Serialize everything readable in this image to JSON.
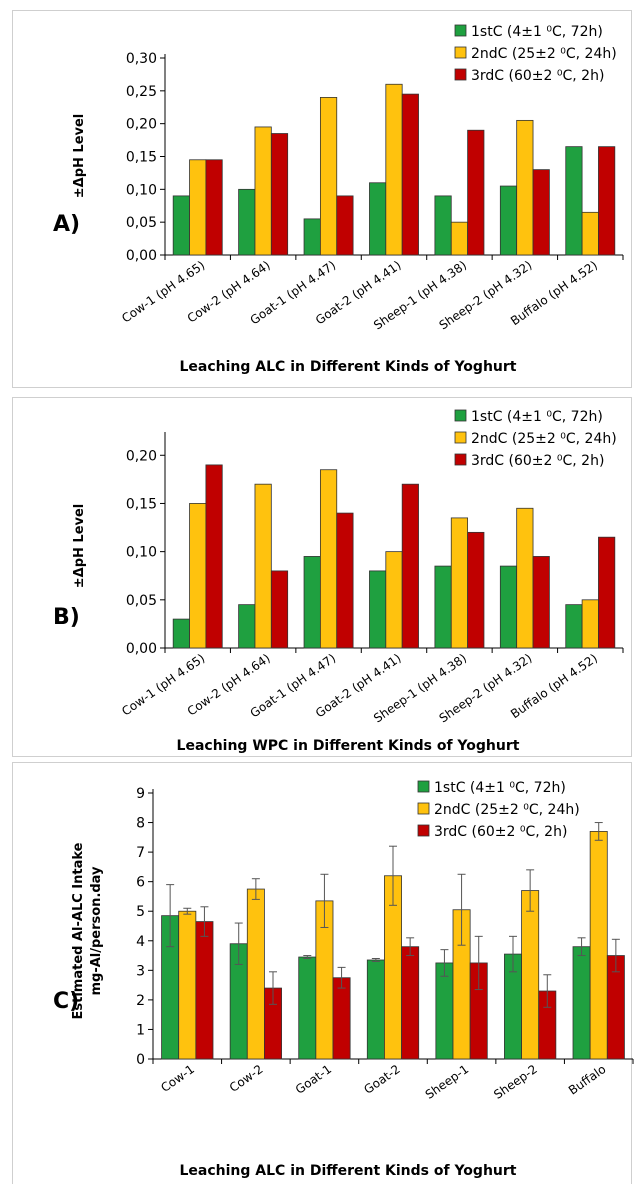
{
  "chart_data": [
    {
      "type": "bar",
      "panel_label": "A)",
      "ylabel": "±ΔpH Level",
      "xlabel": "Leaching ALC in Different Kinds of Yoghurt",
      "categories": [
        "Cow-1 (pH 4.65)",
        "Cow-2 (pH 4.64)",
        "Goat-1 (pH 4.47)",
        "Goat-2 (pH 4.41)",
        "Sheep-1 (pH 4.38)",
        "Sheep-2 (pH 4.32)",
        "Buffalo (pH 4.52)"
      ],
      "ylim": [
        0,
        0.3
      ],
      "yticks": [
        "0,00",
        "0,05",
        "0,10",
        "0,15",
        "0,20",
        "0,25",
        "0,30"
      ],
      "grid": false,
      "legend_position": "top-right",
      "series": [
        {
          "name": "1stC (4±1 ⁰C, 72h)",
          "color": "#1fa040",
          "values": [
            0.09,
            0.1,
            0.055,
            0.11,
            0.09,
            0.105,
            0.165
          ]
        },
        {
          "name": "2ndC (25±2 ⁰C, 24h)",
          "color": "#ffc20e",
          "values": [
            0.145,
            0.195,
            0.24,
            0.26,
            0.05,
            0.205,
            0.065
          ]
        },
        {
          "name": "3rdC (60±2 ⁰C, 2h)",
          "color": "#c00000",
          "values": [
            0.145,
            0.185,
            0.09,
            0.245,
            0.19,
            0.13,
            0.165
          ]
        }
      ]
    },
    {
      "type": "bar",
      "panel_label": "B)",
      "ylabel": "±ΔpH Level",
      "xlabel": "Leaching WPC in Different Kinds of Yoghurt",
      "categories": [
        "Cow-1 (pH 4.65)",
        "Cow-2 (pH 4.64)",
        "Goat-1 (pH 4.47)",
        "Goat-2 (pH 4.41)",
        "Sheep-1 (pH 4.38)",
        "Sheep-2 (pH 4.32)",
        "Buffalo (pH 4.52)"
      ],
      "ylim": [
        0,
        0.22
      ],
      "yticks": [
        "0,00",
        "0,05",
        "0,10",
        "0,15",
        "0,20"
      ],
      "grid": false,
      "legend_position": "top-right",
      "series": [
        {
          "name": "1stC (4±1 ⁰C, 72h)",
          "color": "#1fa040",
          "values": [
            0.03,
            0.045,
            0.095,
            0.08,
            0.085,
            0.085,
            0.045
          ]
        },
        {
          "name": "2ndC (25±2 ⁰C, 24h)",
          "color": "#ffc20e",
          "values": [
            0.15,
            0.17,
            0.185,
            0.1,
            0.135,
            0.145,
            0.05
          ]
        },
        {
          "name": "3rdC (60±2 ⁰C, 2h)",
          "color": "#c00000",
          "values": [
            0.19,
            0.08,
            0.14,
            0.17,
            0.12,
            0.095,
            0.115
          ]
        }
      ]
    },
    {
      "type": "bar",
      "panel_label": "C)",
      "ylabel": "Estimated Al-ALC Intake",
      "ylabel2": "mg-Al/person.day",
      "xlabel": "Leaching ALC in Different Kinds of Yoghurt",
      "categories": [
        "Cow-1",
        "Cow-2",
        "Goat-1",
        "Goat-2",
        "Sheep-1",
        "Sheep-2",
        "Buffalo"
      ],
      "ylim": [
        0,
        9
      ],
      "yticks": [
        "0",
        "1",
        "2",
        "3",
        "4",
        "5",
        "6",
        "7",
        "8",
        "9"
      ],
      "grid": false,
      "legend_position": "top-right",
      "series": [
        {
          "name": "1stC (4±1 ⁰C, 72h)",
          "color": "#1fa040",
          "values": [
            4.85,
            3.9,
            3.45,
            3.35,
            3.25,
            3.55,
            3.8
          ],
          "errors": [
            1.05,
            0.7,
            0.05,
            0.05,
            0.45,
            0.6,
            0.3
          ]
        },
        {
          "name": "2ndC (25±2 ⁰C, 24h)",
          "color": "#ffc20e",
          "values": [
            5.0,
            5.75,
            5.35,
            6.2,
            5.05,
            5.7,
            7.7
          ],
          "errors": [
            0.1,
            0.35,
            0.9,
            1.0,
            1.2,
            0.7,
            0.3
          ]
        },
        {
          "name": "3rdC (60±2 ⁰C, 2h)",
          "color": "#c00000",
          "values": [
            4.65,
            2.4,
            2.75,
            3.8,
            3.25,
            2.3,
            3.5
          ],
          "errors": [
            0.5,
            0.55,
            0.35,
            0.3,
            0.9,
            0.55,
            0.55
          ]
        }
      ]
    }
  ]
}
